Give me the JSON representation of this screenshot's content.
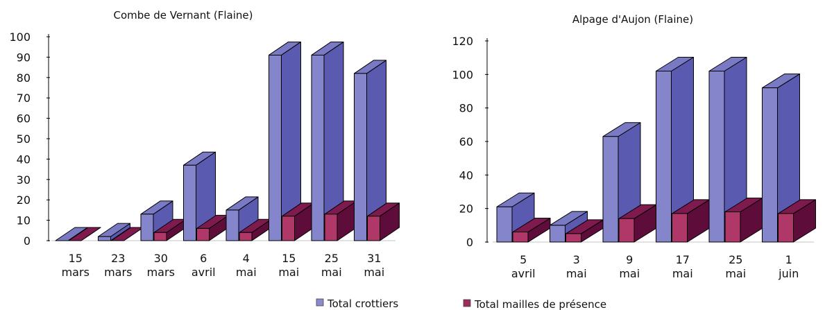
{
  "colors": {
    "crottiers_front": "#8585cc",
    "crottiers_side": "#5a5ab0",
    "crottiers_top": "#7a7ac4",
    "mailles_front": "#b03868",
    "mailles_side": "#5e0c3a",
    "mailles_top": "#7e1a4e",
    "edge": "#000000"
  },
  "legend": [
    {
      "label": "Total crottiers",
      "color": "#8a8acc"
    },
    {
      "label": "Total mailles de présence",
      "color": "#9c2c5c"
    }
  ],
  "chart_data": [
    {
      "type": "bar",
      "title": "Combe de Vernant (Flaine)",
      "categories": [
        [
          "15",
          "mars"
        ],
        [
          "23",
          "mars"
        ],
        [
          "30",
          "mars"
        ],
        [
          "6",
          "avril"
        ],
        [
          "4",
          "mai"
        ],
        [
          "15",
          "mai"
        ],
        [
          "25",
          "mai"
        ],
        [
          "31",
          "mai"
        ]
      ],
      "series": [
        {
          "name": "Total crottiers",
          "values": [
            0,
            2,
            13,
            37,
            15,
            91,
            91,
            82
          ]
        },
        {
          "name": "Total mailles de présence",
          "values": [
            0,
            0,
            4,
            6,
            4,
            12,
            13,
            12
          ]
        }
      ],
      "ylim": [
        0,
        100
      ],
      "yticks": [
        0,
        10,
        20,
        30,
        40,
        50,
        60,
        70,
        80,
        90,
        100
      ],
      "grid": false
    },
    {
      "type": "bar",
      "title": "Alpage d'Aujon (Flaine)",
      "categories": [
        [
          "5",
          "avril"
        ],
        [
          "3",
          "mai"
        ],
        [
          "9",
          "mai"
        ],
        [
          "17",
          "mai"
        ],
        [
          "25",
          "mai"
        ],
        [
          "1",
          "juin"
        ]
      ],
      "series": [
        {
          "name": "Total crottiers",
          "values": [
            21,
            10,
            63,
            102,
            102,
            92
          ]
        },
        {
          "name": "Total mailles de présence",
          "values": [
            6,
            5,
            14,
            17,
            18,
            17
          ]
        }
      ],
      "ylim": [
        0,
        120
      ],
      "yticks": [
        0,
        20,
        40,
        60,
        80,
        100,
        120
      ],
      "grid": false
    }
  ]
}
